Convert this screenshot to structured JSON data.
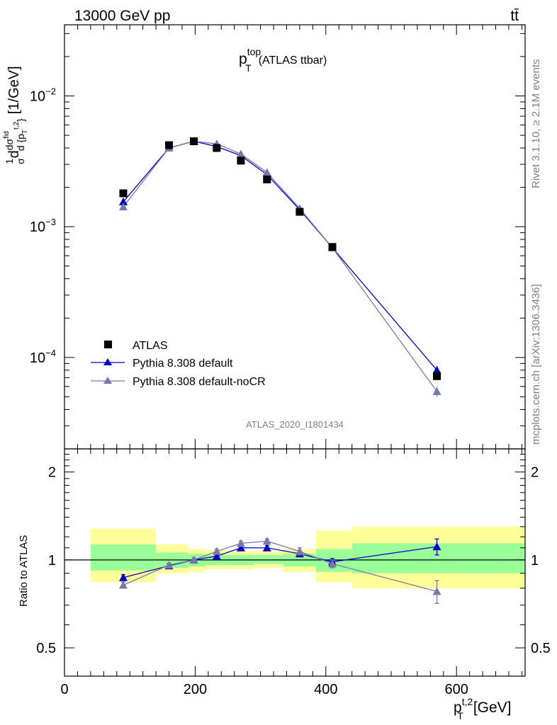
{
  "header": {
    "energy_label": "13000 GeV pp",
    "process_label": "tt̄"
  },
  "side_labels": {
    "rivet": "Rivet 3.1.10, ≥ 2.1M events",
    "mcplots": "mcplots.cern.ch [arXiv:1306.3436]"
  },
  "watermark": "ATLAS_2020_I1801434",
  "colors": {
    "data": "#000000",
    "default": "#0000cc",
    "nocr": "#7777aa",
    "band_inner": "#99ff99",
    "band_outer": "#ffff99"
  },
  "chart_data": [
    {
      "type": "scatter",
      "title": "p_T^top (ATLAS ttbar)",
      "title_main": "p",
      "title_sub": "T",
      "title_sup": "top",
      "title_rest": "(ATLAS ttbar)",
      "xlabel": "p_T^{t,2} [GeV]",
      "xlabel_main": "p",
      "xlabel_sub": "T",
      "xlabel_sup": "t,2",
      "xlabel_rest": "[GeV]",
      "ylabel": "1/σ dσ^fid/d{p_T^{t,2}} [1/GeV]",
      "ylabel_unit": "[1/GeV]",
      "xlim": [
        0,
        705
      ],
      "ylim": [
        2e-05,
        0.035
      ],
      "yscale": "log",
      "grid": false,
      "legend_position": "bottom-left",
      "bin_edges": [
        40,
        140,
        190,
        215,
        250,
        290,
        335,
        385,
        440,
        705
      ],
      "x": [
        90,
        160,
        198,
        233,
        270,
        310,
        360,
        410,
        570
      ],
      "x_tick_labels": [
        "0",
        "200",
        "400",
        "600"
      ],
      "x_ticks": [
        0,
        200,
        400,
        600
      ],
      "y_tick_labels": [
        {
          "base": "10",
          "exp": "−4",
          "value": 0.0001
        },
        {
          "base": "10",
          "exp": "−3",
          "value": 0.001
        },
        {
          "base": "10",
          "exp": "−2",
          "value": 0.01
        }
      ],
      "series": [
        {
          "name": "ATLAS",
          "marker": "square",
          "values": [
            0.0018,
            0.0042,
            0.0045,
            0.004,
            0.0032,
            0.0023,
            0.0013,
            0.0007,
            7.2e-05
          ]
        },
        {
          "name": "Pythia 8.308 default",
          "marker": "triangle",
          "values": [
            0.00155,
            0.004,
            0.0045,
            0.0041,
            0.0035,
            0.0025,
            0.00135,
            0.00069,
            8e-05
          ],
          "errors": [
            0,
            0,
            0,
            0,
            0,
            0,
            0,
            0,
            6e-06
          ]
        },
        {
          "name": "Pythia 8.308 default-noCR",
          "marker": "triangle",
          "values": [
            0.00142,
            0.004,
            0.0045,
            0.0043,
            0.0036,
            0.0026,
            0.00138,
            0.00069,
            5.5e-05
          ],
          "errors": [
            0,
            0,
            0,
            0,
            0,
            0,
            0,
            0,
            5e-06
          ]
        }
      ]
    },
    {
      "type": "scatter",
      "ylabel": "Ratio to ATLAS",
      "xlim": [
        0,
        705
      ],
      "ylim": [
        0.4,
        2.4
      ],
      "grid": false,
      "y_tick_labels": [
        {
          "label": "0.5",
          "value": 0.5
        },
        {
          "label": "1",
          "value": 1
        },
        {
          "label": "2",
          "value": 2
        }
      ],
      "reference_line": 1,
      "bands": [
        {
          "x0": 40,
          "x1": 140,
          "inner": [
            0.92,
            1.13
          ],
          "outer": [
            0.84,
            1.28
          ]
        },
        {
          "x0": 140,
          "x1": 190,
          "inner": [
            0.94,
            1.06
          ],
          "outer": [
            0.9,
            1.13
          ]
        },
        {
          "x0": 190,
          "x1": 215,
          "inner": [
            0.95,
            1.05
          ],
          "outer": [
            0.91,
            1.09
          ]
        },
        {
          "x0": 215,
          "x1": 250,
          "inner": [
            0.96,
            1.04
          ],
          "outer": [
            0.93,
            1.08
          ]
        },
        {
          "x0": 250,
          "x1": 290,
          "inner": [
            0.96,
            1.04
          ],
          "outer": [
            0.93,
            1.07
          ]
        },
        {
          "x0": 290,
          "x1": 335,
          "inner": [
            0.97,
            1.04
          ],
          "outer": [
            0.94,
            1.07
          ]
        },
        {
          "x0": 335,
          "x1": 385,
          "inner": [
            0.95,
            1.05
          ],
          "outer": [
            0.91,
            1.09
          ]
        },
        {
          "x0": 385,
          "x1": 440,
          "inner": [
            0.91,
            1.09
          ],
          "outer": [
            0.84,
            1.26
          ]
        },
        {
          "x0": 440,
          "x1": 705,
          "inner": [
            0.9,
            1.14
          ],
          "outer": [
            0.8,
            1.3
          ]
        }
      ],
      "series": [
        {
          "name": "Pythia 8.308 default",
          "values": [
            0.87,
            0.955,
            1.0,
            1.03,
            1.1,
            1.1,
            1.05,
            0.985,
            1.11
          ],
          "errors": [
            0.02,
            0.015,
            0.015,
            0.02,
            0.02,
            0.02,
            0.025,
            0.025,
            0.07
          ]
        },
        {
          "name": "Pythia 8.308 default-noCR",
          "values": [
            0.82,
            0.96,
            1.0,
            1.07,
            1.14,
            1.16,
            1.07,
            0.97,
            0.78
          ],
          "errors": [
            0.02,
            0.015,
            0.015,
            0.02,
            0.02,
            0.02,
            0.03,
            0.03,
            0.07
          ]
        }
      ]
    }
  ]
}
